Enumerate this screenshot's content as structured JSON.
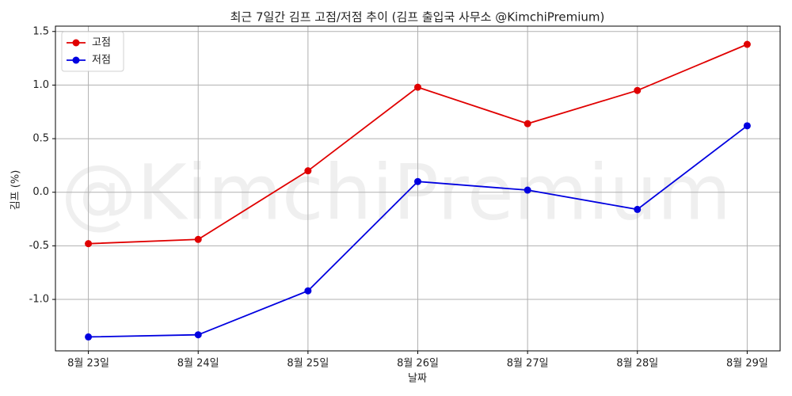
{
  "chart_data": {
    "type": "line",
    "title": "최근 7일간 김프 고점/저점 추이 (김프 출입국 사무소 @KimchiPremium)",
    "watermark": "@KimchiPremium",
    "x_label": "날짜",
    "y_label": "김프 (%)",
    "categories": [
      "8월 23일",
      "8월 24일",
      "8월 25일",
      "8월 26일",
      "8월 27일",
      "8월 28일",
      "8월 29일"
    ],
    "series": [
      {
        "name": "고점",
        "color": "#e00000",
        "values": [
          -0.48,
          -0.44,
          0.2,
          0.98,
          0.64,
          0.95,
          1.38
        ]
      },
      {
        "name": "저점",
        "color": "#0000e0",
        "values": [
          -1.35,
          -1.33,
          -0.92,
          0.1,
          0.02,
          -0.16,
          0.62
        ]
      }
    ],
    "ylim": [
      -1.48,
      1.55
    ],
    "yticks": [
      {
        "value": -1.0,
        "label": "-1.0"
      },
      -0.5,
      {
        "value": 0.0,
        "label": "0.0"
      },
      0.5,
      {
        "value": 1.0,
        "label": "1.0"
      },
      1.5
    ],
    "grid": true,
    "legend": "upper-left"
  }
}
